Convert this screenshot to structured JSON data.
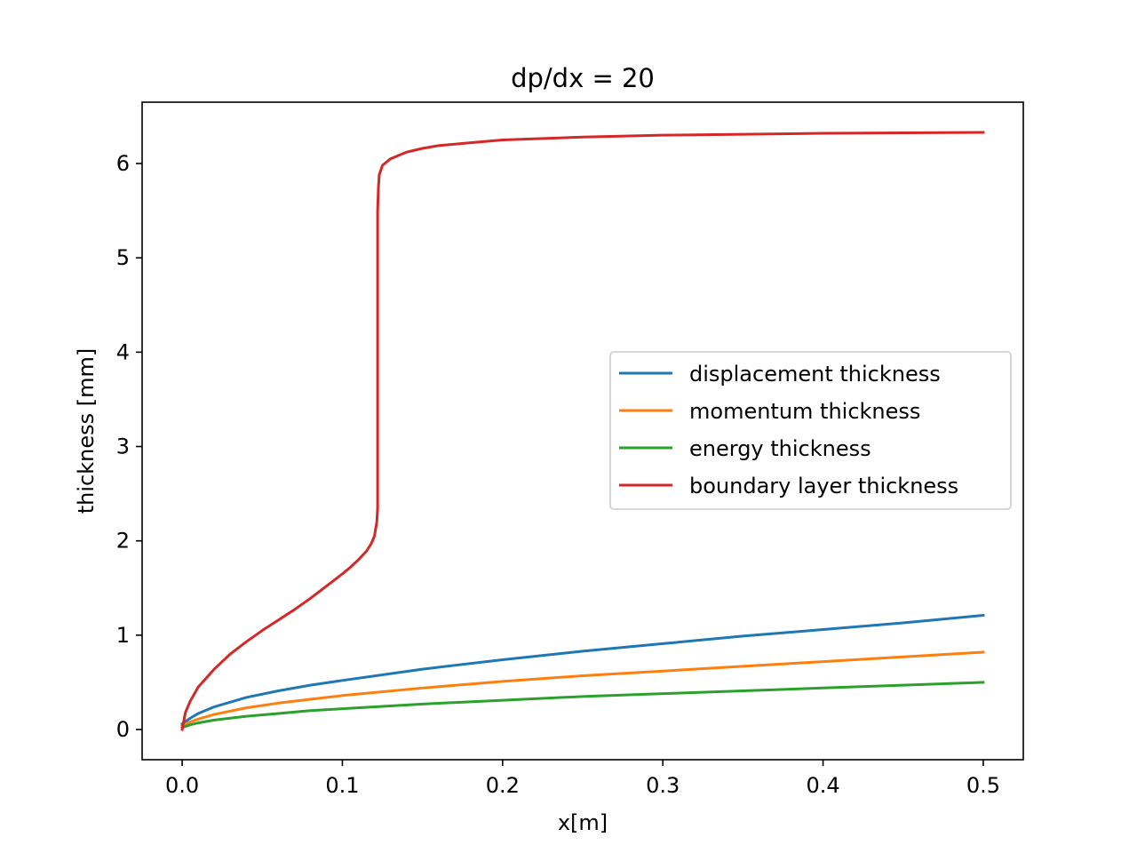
{
  "chart_data": {
    "type": "line",
    "title": "dp/dx = 20",
    "xlabel": "x[m]",
    "ylabel": "thickness [mm]",
    "xlim": [
      -0.025,
      0.525
    ],
    "ylim": [
      -0.32,
      6.65
    ],
    "xticks": [
      0.0,
      0.1,
      0.2,
      0.3,
      0.4,
      0.5
    ],
    "xtick_labels": [
      "0.0",
      "0.1",
      "0.2",
      "0.3",
      "0.4",
      "0.5"
    ],
    "yticks": [
      0,
      1,
      2,
      3,
      4,
      5,
      6
    ],
    "ytick_labels": [
      "0",
      "1",
      "2",
      "3",
      "4",
      "5",
      "6"
    ],
    "grid": false,
    "legend_position": "center-right",
    "series": [
      {
        "name": "displacement thickness",
        "color": "#1f77b4",
        "x": [
          0.0,
          0.005,
          0.01,
          0.02,
          0.04,
          0.06,
          0.08,
          0.1,
          0.15,
          0.2,
          0.25,
          0.3,
          0.35,
          0.4,
          0.45,
          0.5
        ],
        "y": [
          0.06,
          0.12,
          0.17,
          0.24,
          0.34,
          0.41,
          0.47,
          0.52,
          0.64,
          0.74,
          0.83,
          0.91,
          0.99,
          1.06,
          1.13,
          1.21
        ]
      },
      {
        "name": "momentum thickness",
        "color": "#ff7f0e",
        "x": [
          0.0,
          0.005,
          0.01,
          0.02,
          0.04,
          0.06,
          0.08,
          0.1,
          0.15,
          0.2,
          0.25,
          0.3,
          0.35,
          0.4,
          0.45,
          0.5
        ],
        "y": [
          0.04,
          0.08,
          0.11,
          0.16,
          0.23,
          0.28,
          0.32,
          0.36,
          0.44,
          0.51,
          0.57,
          0.62,
          0.67,
          0.72,
          0.77,
          0.82
        ]
      },
      {
        "name": "energy thickness",
        "color": "#2ca02c",
        "x": [
          0.0,
          0.005,
          0.01,
          0.02,
          0.04,
          0.06,
          0.08,
          0.1,
          0.15,
          0.2,
          0.25,
          0.3,
          0.35,
          0.4,
          0.45,
          0.5
        ],
        "y": [
          0.02,
          0.05,
          0.07,
          0.1,
          0.14,
          0.17,
          0.2,
          0.22,
          0.27,
          0.31,
          0.35,
          0.38,
          0.41,
          0.44,
          0.47,
          0.5
        ]
      },
      {
        "name": "boundary layer thickness",
        "color": "#d62728",
        "x": [
          0.0,
          0.002,
          0.005,
          0.01,
          0.02,
          0.03,
          0.04,
          0.05,
          0.06,
          0.07,
          0.08,
          0.09,
          0.1,
          0.105,
          0.11,
          0.115,
          0.118,
          0.12,
          0.1215,
          0.122,
          0.122,
          0.1225,
          0.123,
          0.125,
          0.13,
          0.14,
          0.15,
          0.16,
          0.18,
          0.2,
          0.25,
          0.3,
          0.4,
          0.5
        ],
        "y": [
          0.0,
          0.18,
          0.3,
          0.45,
          0.64,
          0.8,
          0.93,
          1.05,
          1.16,
          1.27,
          1.39,
          1.52,
          1.65,
          1.72,
          1.8,
          1.89,
          1.97,
          2.05,
          2.2,
          2.35,
          5.5,
          5.75,
          5.88,
          5.98,
          6.05,
          6.12,
          6.16,
          6.19,
          6.22,
          6.25,
          6.28,
          6.3,
          6.32,
          6.33
        ]
      }
    ]
  }
}
